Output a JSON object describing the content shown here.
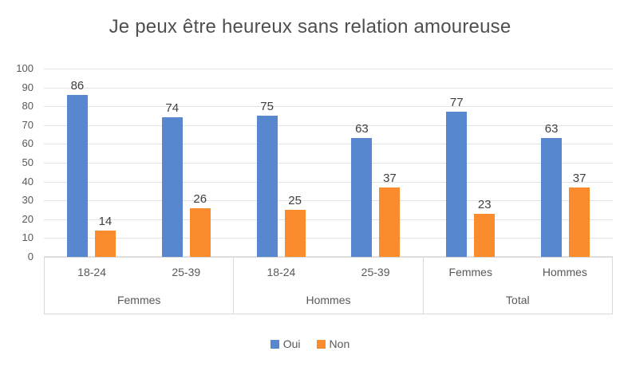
{
  "chart_data": {
    "type": "bar",
    "title": "Je peux être heureux sans relation amoureuse",
    "ylim": [
      0,
      100
    ],
    "y_tick_step": 10,
    "gridlines": true,
    "legend_position": "bottom",
    "categories": [
      "18-24",
      "25-39",
      "18-24",
      "25-39",
      "Femmes",
      "Hommes"
    ],
    "groups": [
      {
        "label": "Femmes",
        "span": 2
      },
      {
        "label": "Hommes",
        "span": 2
      },
      {
        "label": "Total",
        "span": 2
      }
    ],
    "series": [
      {
        "name": "Oui",
        "color": "#5787CE",
        "values": [
          86,
          74,
          75,
          63,
          77,
          63
        ]
      },
      {
        "name": "Non",
        "color": "#FB8C2D",
        "values": [
          14,
          26,
          25,
          37,
          23,
          37
        ]
      }
    ]
  },
  "colors": {
    "oui_blue": "#5787CE",
    "non_orange": "#FB8C2D",
    "gridline": "#E3E3E3",
    "axis_line": "#D9D9D9",
    "tick_text": "#595959",
    "data_label": "#3F3F3F",
    "title_text": "#4F4F4F"
  }
}
